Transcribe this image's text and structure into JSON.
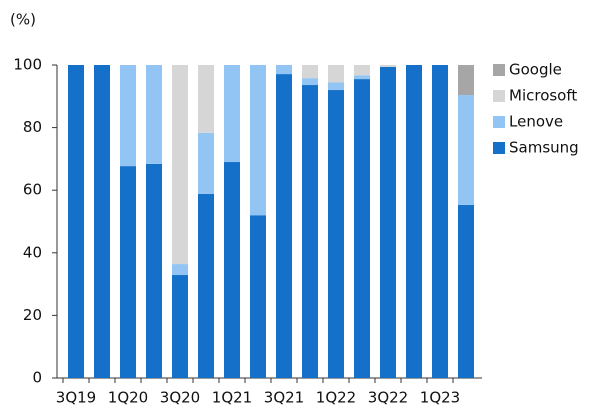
{
  "chart_data": {
    "type": "bar",
    "stacked": true,
    "y_label": "(%)",
    "categories": [
      "3Q19",
      null,
      "1Q20",
      null,
      "3Q20",
      null,
      "1Q21",
      null,
      "3Q21",
      null,
      "1Q22",
      null,
      "3Q22",
      null,
      "1Q23",
      null
    ],
    "series": [
      {
        "name": "Samsung",
        "color": "#1570c9",
        "values": [
          100,
          100,
          67.7,
          68.4,
          32.9,
          58.8,
          69,
          52,
          97.1,
          93.6,
          92,
          95.5,
          99.4,
          100,
          100,
          55.3
        ]
      },
      {
        "name": "Lenove",
        "color": "#92c5f4",
        "values": [
          0,
          0,
          32.3,
          31.6,
          3.5,
          19.5,
          31,
          48,
          2.9,
          2.2,
          2.5,
          1.2,
          0,
          0,
          0,
          35.1
        ]
      },
      {
        "name": "Microsoft",
        "color": "#d6d6d6",
        "values": [
          0,
          0,
          0,
          0,
          63.6,
          21.7,
          0,
          0,
          0,
          4.2,
          5.5,
          3.3,
          0.6,
          0,
          0,
          0
        ]
      },
      {
        "name": "Google",
        "color": "#a6a6a6",
        "values": [
          0,
          0,
          0,
          0,
          0,
          0,
          0,
          0,
          0,
          0,
          0,
          0,
          0,
          0,
          0,
          9.6
        ]
      }
    ],
    "ylim": [
      0,
      100
    ],
    "yticks": [
      0,
      20,
      40,
      60,
      80,
      100
    ],
    "legend": "right"
  }
}
